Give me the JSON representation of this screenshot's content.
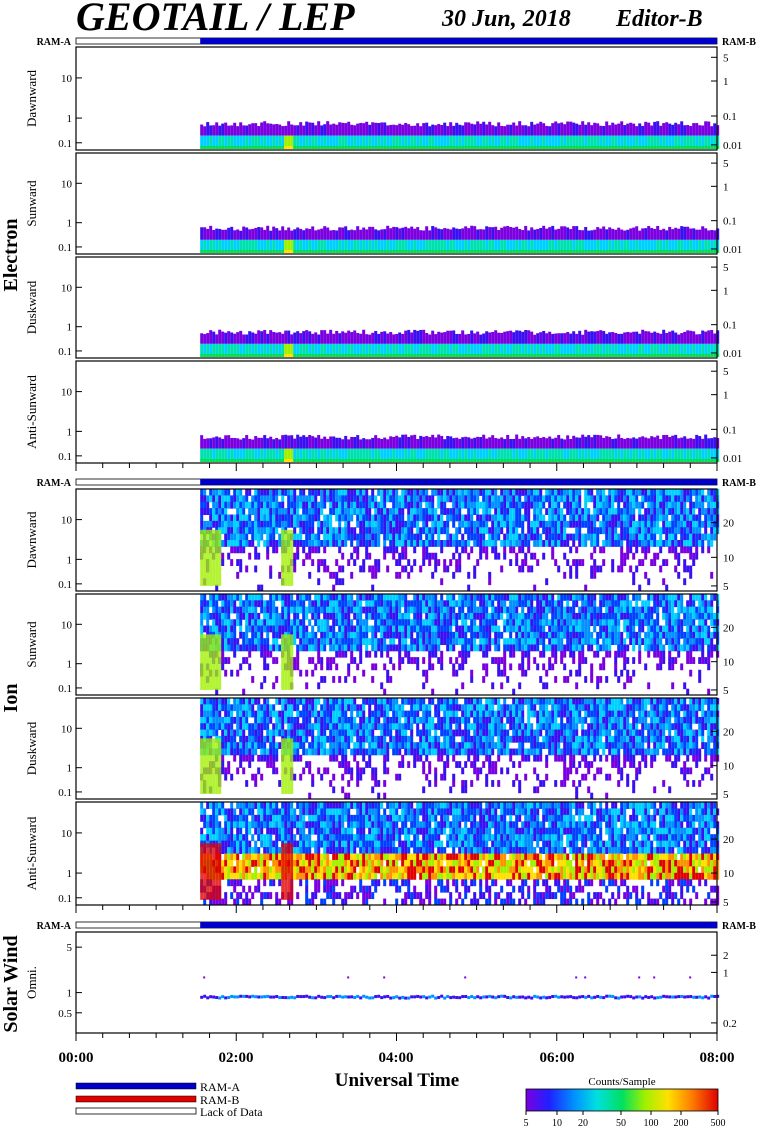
{
  "header": {
    "title": "GEOTAIL / LEP",
    "date": "30 Jun, 2018",
    "editor": "Editor-B"
  },
  "ram": {
    "left": "RAM-A",
    "right": "RAM-B"
  },
  "groups": {
    "electron": "Electron",
    "ion": "Ion",
    "solar_wind": "Solar Wind"
  },
  "panel_labels": {
    "dawnward": "Dawnward",
    "sunward": "Sunward",
    "duskward": "Duskward",
    "anti_sunward": "Anti-Sunward",
    "omni": "Omni."
  },
  "xaxis": {
    "label": "Universal Time",
    "ticks": [
      "00:00",
      "02:00",
      "04:00",
      "06:00",
      "08:00"
    ]
  },
  "legend": {
    "ram_a": "RAM-A",
    "ram_b": "RAM-B",
    "lack": "Lack of Data"
  },
  "colorbar": {
    "title": "Counts/Sample",
    "ticks": [
      "5",
      "10",
      "20",
      "50",
      "100",
      "200",
      "500"
    ]
  },
  "colors": {
    "ram_a_bar": "#0000c8",
    "ram_b_bar": "#e00000"
  },
  "chart_data": {
    "type": "heatmap",
    "time_range_hours": [
      0,
      8
    ],
    "data_start_hour": 1.55,
    "ram_bar_segment": {
      "lack_of_data": [
        0,
        1.55
      ],
      "RAM-A": [
        1.55,
        8
      ]
    },
    "electron": {
      "left_axis_ticks": [
        "10",
        "1",
        "0.1"
      ],
      "right_axis_ticks": [
        "5",
        "1",
        "0.1",
        "0.01"
      ],
      "yscale": "log"
    },
    "ion": {
      "left_axis_ticks": [
        "10",
        "1",
        "0.1"
      ],
      "right_axis_ticks": [
        "20",
        "10",
        "5"
      ],
      "yscale": "log"
    },
    "solar_wind": {
      "left_axis_ticks": [
        "5",
        "1",
        "0.5"
      ],
      "right_axis_ticks": [
        "2",
        "1",
        "0.2"
      ],
      "yscale": "log"
    }
  }
}
